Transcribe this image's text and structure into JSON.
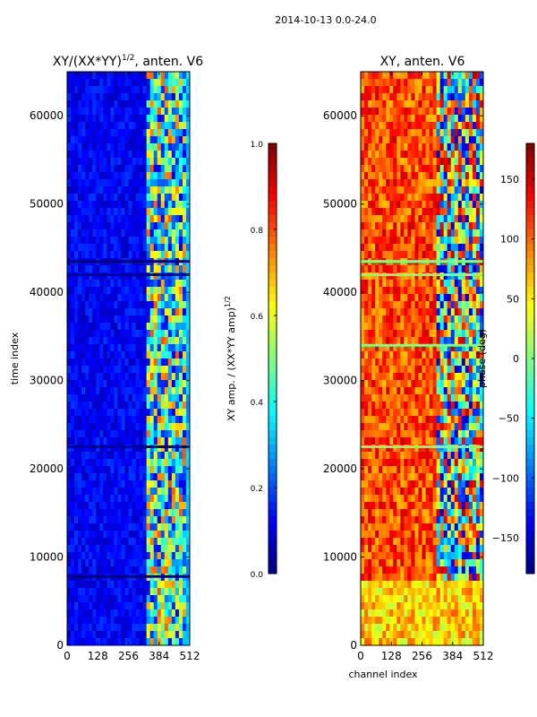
{
  "figure": {
    "suptitle": "2014-10-13 0.0-24.0",
    "x_axis_label": "channel index",
    "y_axis_label": "time index"
  },
  "colors": {
    "jet": [
      "#00007f",
      "#0000ff",
      "#007fff",
      "#00ffff",
      "#7fff7f",
      "#ffff00",
      "#ff7f00",
      "#ff0000",
      "#7f0000"
    ],
    "axis": "#000000",
    "background": "#ffffff"
  },
  "chart_data": [
    {
      "type": "heatmap",
      "title": "XY/(XX*YY)",
      "title_superscript": "1/2",
      "title_suffix": ", anten. V6",
      "xlabel": "",
      "ylabel": "time index",
      "xlim": [
        0,
        512
      ],
      "ylim": [
        0,
        65000
      ],
      "xticks": [
        0,
        128,
        256,
        384,
        512
      ],
      "yticks": [
        0,
        10000,
        20000,
        30000,
        40000,
        50000,
        60000
      ],
      "value_range": [
        0.0,
        1.0
      ],
      "colorbar": {
        "label": "XY amp. / (XX*YY amp)",
        "label_superscript": "1/2",
        "range": [
          0.0,
          1.0
        ],
        "ticks": [
          "0.0",
          "0.2",
          "0.4",
          "0.6",
          "0.8",
          "1.0"
        ]
      },
      "regions": [
        {
          "channels": [
            0,
            330
          ],
          "times": [
            0,
            65000
          ],
          "level": 0.12
        },
        {
          "channels": [
            330,
            500
          ],
          "times": [
            0,
            65000
          ],
          "level": 0.45
        },
        {
          "channels": [
            500,
            512
          ],
          "times": [
            0,
            65000
          ],
          "level": 0.3
        }
      ],
      "flagged_rows": [
        7800,
        22500,
        42000,
        43500
      ]
    },
    {
      "type": "heatmap",
      "title": "XY, anten. V6",
      "xlabel": "channel index",
      "ylabel": "",
      "xlim": [
        0,
        512
      ],
      "ylim": [
        0,
        65000
      ],
      "xticks": [
        0,
        128,
        256,
        384,
        512
      ],
      "yticks": [
        0,
        10000,
        20000,
        30000,
        40000,
        50000,
        60000
      ],
      "value_range": [
        -180,
        180
      ],
      "colorbar": {
        "label": "phase (deg)",
        "range": [
          -180,
          180
        ],
        "ticks": [
          "−150",
          "−100",
          "−50",
          "0",
          "50",
          "100",
          "150"
        ]
      },
      "regions": [
        {
          "channels": [
            0,
            310
          ],
          "times": [
            0,
            65000
          ],
          "level": 110
        },
        {
          "channels": [
            310,
            512
          ],
          "times": [
            0,
            65000
          ],
          "level": 0
        },
        {
          "channels": [
            0,
            512
          ],
          "times": [
            0,
            7500
          ],
          "level": 60
        }
      ],
      "flagged_rows": [
        22500,
        34000,
        42000,
        43500
      ]
    }
  ]
}
